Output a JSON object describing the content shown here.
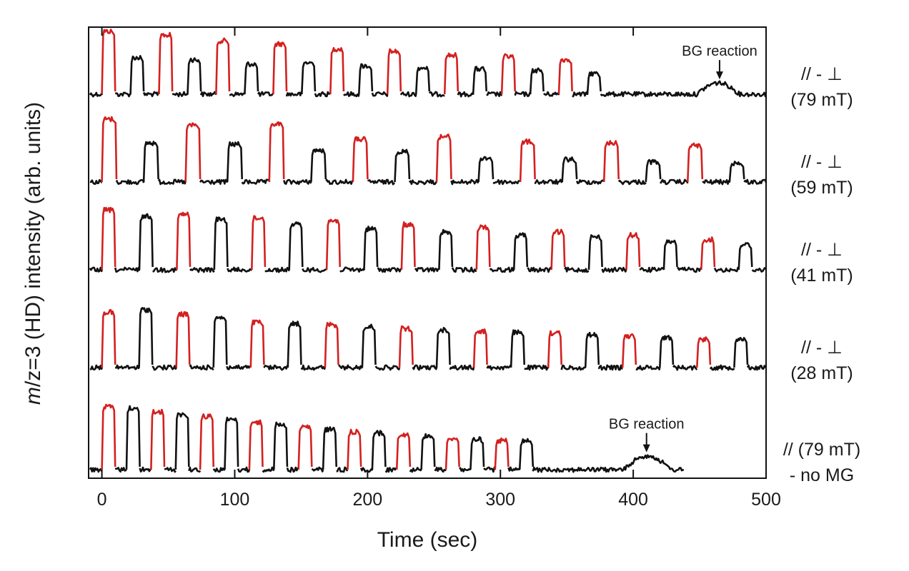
{
  "chart_data": {
    "type": "line",
    "xlabel": "Time (sec)",
    "ylabel_italic": "m",
    "ylabel_rest": "/z=3 (HD) intensity (arb. units)",
    "xlim": [
      -10,
      500
    ],
    "xticks": [
      0,
      100,
      200,
      300,
      400,
      500
    ],
    "colors": {
      "parallel": "#d42020",
      "perpendicular": "#111111"
    },
    "series": [
      {
        "label_line1": "// - ⊥",
        "label_line2": "(79 mT)",
        "period": 21.5,
        "first_pulse": 0,
        "pulse_width": 10,
        "pulse_count": 18,
        "x_end": 500,
        "heights": [
          1.0,
          0.58,
          0.94,
          0.55,
          0.85,
          0.48,
          0.8,
          0.5,
          0.72,
          0.45,
          0.68,
          0.42,
          0.62,
          0.4,
          0.6,
          0.38,
          0.55,
          0.33
        ],
        "annotation": {
          "text": "BG reaction",
          "x": 465,
          "bump_start": 448,
          "bump_end": 480,
          "bump_height": 0.18
        }
      },
      {
        "label_line1": "// - ⊥",
        "label_line2": "(59 mT)",
        "period": 31.5,
        "first_pulse": 0,
        "pulse_width": 11,
        "pulse_count": 16,
        "x_end": 500,
        "heights": [
          1.0,
          0.62,
          0.9,
          0.6,
          0.92,
          0.5,
          0.68,
          0.48,
          0.72,
          0.38,
          0.64,
          0.36,
          0.62,
          0.32,
          0.58,
          0.3
        ],
        "annotation": null
      },
      {
        "label_line1": "// - ⊥",
        "label_line2": "(41 mT)",
        "period": 28.2,
        "first_pulse": 0,
        "pulse_width": 10,
        "pulse_count": 18,
        "x_end": 500,
        "heights": [
          0.95,
          0.85,
          0.88,
          0.8,
          0.82,
          0.72,
          0.78,
          0.65,
          0.72,
          0.6,
          0.68,
          0.55,
          0.6,
          0.52,
          0.55,
          0.45,
          0.48,
          0.4
        ],
        "annotation": null
      },
      {
        "label_line1": "// - ⊥",
        "label_line2": "(28 mT)",
        "period": 28.0,
        "first_pulse": 0,
        "pulse_width": 10,
        "pulse_count": 18,
        "x_end": 500,
        "heights": [
          0.88,
          0.92,
          0.85,
          0.8,
          0.72,
          0.7,
          0.68,
          0.65,
          0.62,
          0.6,
          0.58,
          0.56,
          0.55,
          0.52,
          0.5,
          0.48,
          0.45,
          0.46
        ],
        "annotation": null
      },
      {
        "label_line1": "// (79 mT)",
        "label_line2": "- no MG",
        "period": 18.5,
        "first_pulse": 0,
        "pulse_width": 10,
        "pulse_count": 18,
        "x_end": 438,
        "heights": [
          1.0,
          0.98,
          0.92,
          0.88,
          0.85,
          0.8,
          0.75,
          0.72,
          0.68,
          0.64,
          0.6,
          0.58,
          0.56,
          0.54,
          0.5,
          0.48,
          0.46,
          0.45
        ],
        "annotation": {
          "text": "BG reaction",
          "x": 410,
          "bump_start": 393,
          "bump_end": 428,
          "bump_height": 0.22
        }
      }
    ]
  }
}
